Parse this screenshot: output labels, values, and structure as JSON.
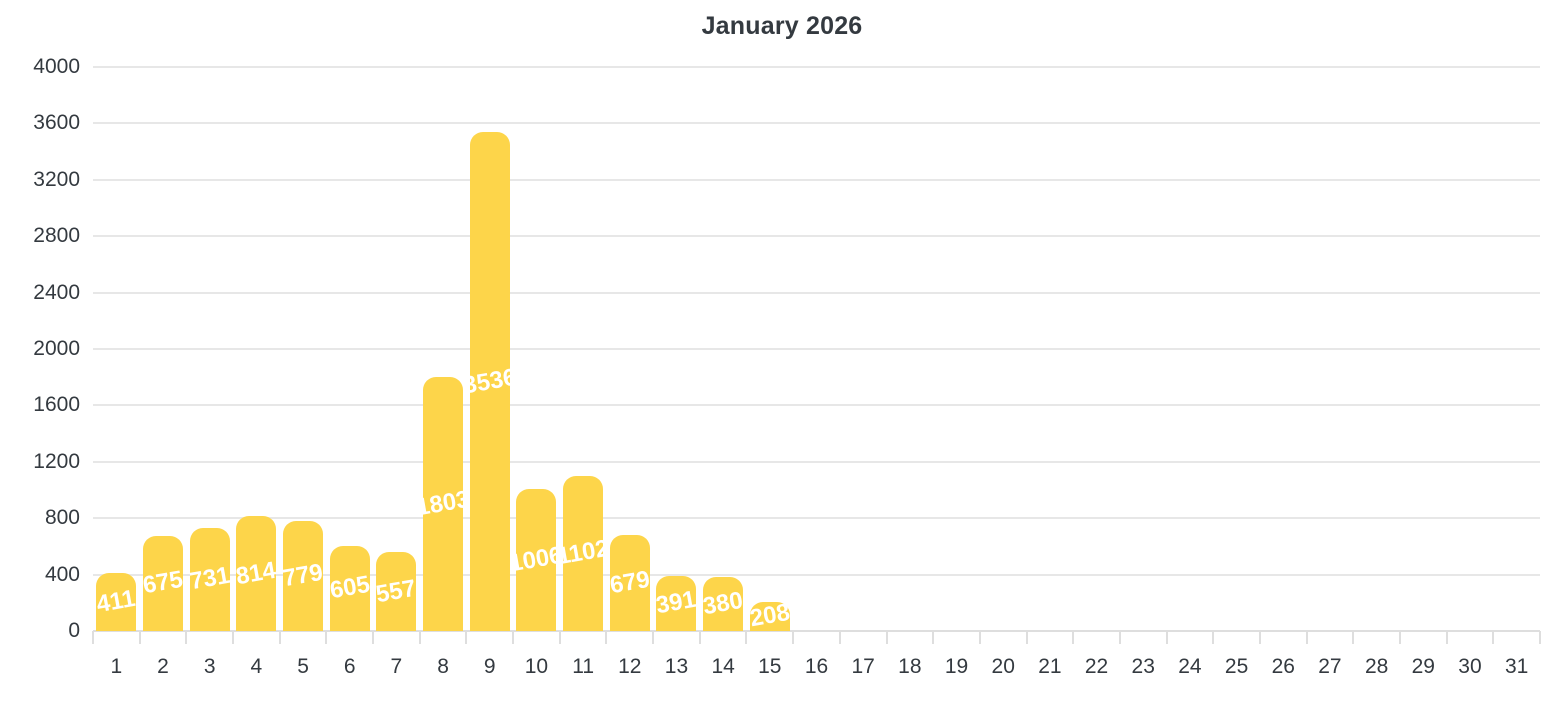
{
  "title": "January 2026",
  "chart_data": {
    "type": "bar",
    "title": "January 2026",
    "categories": [
      "1",
      "2",
      "3",
      "4",
      "5",
      "6",
      "7",
      "8",
      "9",
      "10",
      "11",
      "12",
      "13",
      "14",
      "15",
      "16",
      "17",
      "18",
      "19",
      "20",
      "21",
      "22",
      "23",
      "24",
      "25",
      "26",
      "27",
      "28",
      "29",
      "30",
      "31"
    ],
    "values": [
      411,
      675,
      731,
      814,
      779,
      605,
      557,
      1803,
      3536,
      1006,
      1102,
      679,
      391,
      380,
      208,
      null,
      null,
      null,
      null,
      null,
      null,
      null,
      null,
      null,
      null,
      null,
      null,
      null,
      null,
      null,
      null
    ],
    "xlabel": "",
    "ylabel": "",
    "ylim": [
      0,
      4000
    ],
    "yticks": [
      0,
      400,
      800,
      1200,
      1600,
      2000,
      2400,
      2800,
      3200,
      3600,
      4000
    ],
    "grid": true,
    "legend": "none",
    "bar_color": "#fdd54a",
    "value_label_color": "#ffffff",
    "axis_text_color": "#343a40",
    "gridline_color": "#e7e7e7",
    "axis_line_color": "#dedede"
  }
}
